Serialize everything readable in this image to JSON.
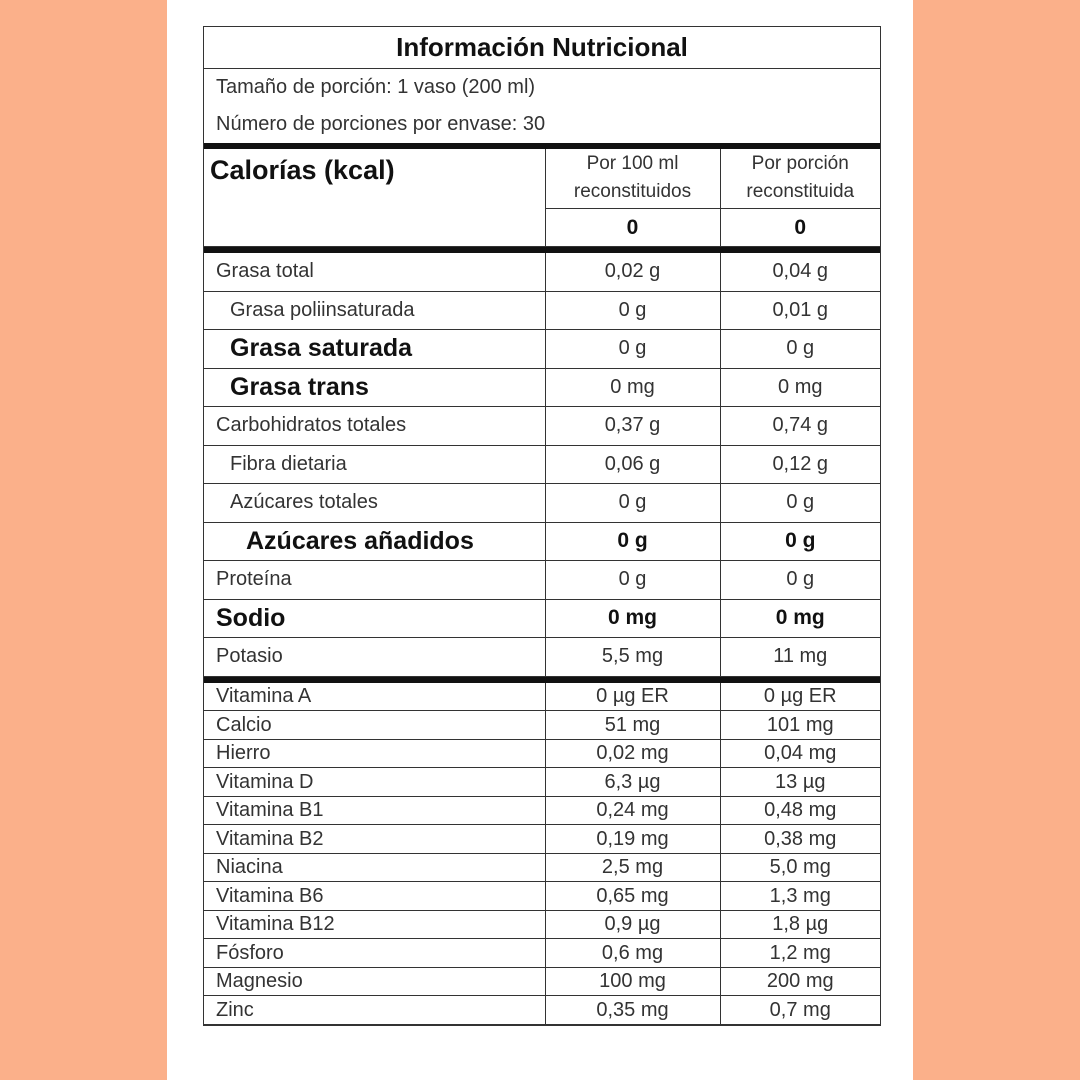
{
  "title": "Información Nutricional",
  "serving_size": "Tamaño de porción: 1 vaso (200 ml)",
  "servings_per_container": "Número de porciones por envase:  30",
  "calories": {
    "label": "Calorías (kcal)",
    "col1_header": "Por 100 ml reconstituidos",
    "col2_header": "Por porción reconstituida",
    "per_100ml": "0",
    "per_serving": "0"
  },
  "nutrients": [
    {
      "name": "Grasa total",
      "per_100ml": "0,02 g",
      "per_serving": "0,04 g"
    },
    {
      "name": "Grasa poliinsaturada",
      "per_100ml": "0 g",
      "per_serving": "0,01 g"
    },
    {
      "name": "Grasa saturada",
      "per_100ml": "0 g",
      "per_serving": "0 g"
    },
    {
      "name": "Grasa trans",
      "per_100ml": "0 mg",
      "per_serving": "0 mg"
    },
    {
      "name": "Carbohidratos totales",
      "per_100ml": "0,37 g",
      "per_serving": "0,74 g"
    },
    {
      "name": "Fibra dietaria",
      "per_100ml": "0,06 g",
      "per_serving": "0,12 g"
    },
    {
      "name": "Azúcares totales",
      "per_100ml": "0 g",
      "per_serving": "0 g"
    },
    {
      "name": "Azúcares añadidos",
      "per_100ml": "0 g",
      "per_serving": "0 g"
    },
    {
      "name": "Proteína",
      "per_100ml": "0 g",
      "per_serving": "0 g"
    },
    {
      "name": "Sodio",
      "per_100ml": "0 mg",
      "per_serving": "0 mg"
    },
    {
      "name": "Potasio",
      "per_100ml": "5,5 mg",
      "per_serving": "11 mg"
    }
  ],
  "vitamins": [
    {
      "name": "Vitamina A",
      "per_100ml": "0 µg ER",
      "per_serving": "0 µg ER"
    },
    {
      "name": "Calcio",
      "per_100ml": "51 mg",
      "per_serving": "101 mg"
    },
    {
      "name": "Hierro",
      "per_100ml": "0,02 mg",
      "per_serving": "0,04 mg"
    },
    {
      "name": "Vitamina D",
      "per_100ml": "6,3 µg",
      "per_serving": "13 µg"
    },
    {
      "name": "Vitamina B1",
      "per_100ml": "0,24 mg",
      "per_serving": "0,48 mg"
    },
    {
      "name": "Vitamina B2",
      "per_100ml": "0,19 mg",
      "per_serving": "0,38 mg"
    },
    {
      "name": "Niacina",
      "per_100ml": "2,5 mg",
      "per_serving": "5,0 mg"
    },
    {
      "name": "Vitamina B6",
      "per_100ml": "0,65 mg",
      "per_serving": "1,3 mg"
    },
    {
      "name": "Vitamina B12",
      "per_100ml": "0,9 µg",
      "per_serving": "1,8 µg"
    },
    {
      "name": "Fósforo",
      "per_100ml": "0,6 mg",
      "per_serving": "1,2 mg"
    },
    {
      "name": "Magnesio",
      "per_100ml": "100 mg",
      "per_serving": "200 mg"
    },
    {
      "name": "Zinc",
      "per_100ml": "0,35 mg",
      "per_serving": "0,7 mg"
    }
  ]
}
